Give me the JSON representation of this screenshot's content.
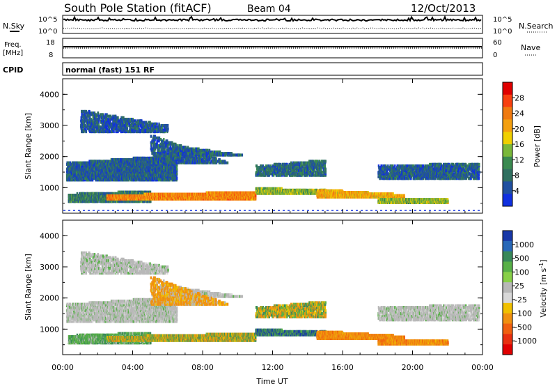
{
  "header": {
    "station": "South Pole Station (fitACF)",
    "beam": "Beam 04",
    "date": "12/Oct/2013"
  },
  "aux_panels": {
    "nsky_label": "N.Sky",
    "nsearch_label": "N.Search",
    "freq_label": "Freq.",
    "freq_unit": "[MHz]",
    "nave_label": "Nave",
    "cpid_label": "CPID",
    "cpid_text": "normal (fast) 151 RF",
    "noise_ticks": [
      "10^5",
      "10^0"
    ],
    "freq_ticks": [
      "18",
      "8"
    ],
    "nave_ticks": [
      "60",
      "0"
    ]
  },
  "chart_data": [
    {
      "type": "heatmap",
      "name": "power",
      "ylabel": "Slant Range [km]",
      "xlabel": "",
      "y_ticks": [
        "4000",
        "3000",
        "2000",
        "1000"
      ],
      "colorbar": {
        "label": "Power [dB]",
        "ticks": [
          "28",
          "24",
          "20",
          "16",
          "12",
          "8",
          "4"
        ],
        "colors": [
          "#e00000",
          "#f84010",
          "#f07a10",
          "#f4a010",
          "#f0d000",
          "#7ab83a",
          "#3a8a50",
          "#307060",
          "#2050a0",
          "#1030e0"
        ]
      }
    },
    {
      "type": "heatmap",
      "name": "velocity",
      "ylabel": "Slant Range [km]",
      "xlabel": "Time UT",
      "x_ticks": [
        "00:00",
        "04:00",
        "08:00",
        "12:00",
        "16:00",
        "20:00",
        "00:00"
      ],
      "y_ticks": [
        "4000",
        "3000",
        "2000",
        "1000"
      ],
      "colorbar": {
        "label": "Velocity [m s-1]",
        "label_main": "Velocity [m s",
        "label_sup": "-1",
        "label_end": "]",
        "ticks": [
          "1000",
          "500",
          "100",
          "25",
          "-25",
          "-100",
          "-500",
          "-1000"
        ],
        "colors": [
          "#1838a8",
          "#2868b8",
          "#38885a",
          "#58b048",
          "#88d048",
          "#b8b8b8",
          "#d8d8d8",
          "#f0c000",
          "#f09010",
          "#f06010",
          "#e83010",
          "#e00000"
        ]
      }
    }
  ]
}
